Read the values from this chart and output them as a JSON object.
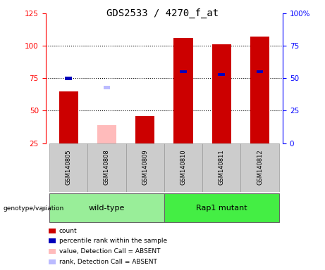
{
  "title": "GDS2533 / 4270_f_at",
  "samples": [
    "GSM140805",
    "GSM140808",
    "GSM140809",
    "GSM140810",
    "GSM140811",
    "GSM140812"
  ],
  "group_wt": {
    "name": "wild-type",
    "indices": [
      0,
      1,
      2
    ],
    "color": "#99ee99"
  },
  "group_rap": {
    "name": "Rap1 mutant",
    "indices": [
      3,
      4,
      5
    ],
    "color": "#44ee44"
  },
  "count_values": [
    65,
    null,
    46,
    106,
    101,
    107
  ],
  "percentile_values": [
    50,
    null,
    null,
    55,
    53,
    55
  ],
  "absent_value_values": [
    null,
    39,
    null,
    null,
    null,
    null
  ],
  "absent_rank_values": [
    null,
    43,
    null,
    null,
    null,
    null
  ],
  "left_ylim": [
    25,
    125
  ],
  "left_yticks": [
    25,
    50,
    75,
    100,
    125
  ],
  "right_ylim": [
    0,
    100
  ],
  "right_yticks": [
    0,
    25,
    50,
    75,
    100
  ],
  "right_yticklabels": [
    "0",
    "25",
    "50",
    "75",
    "100%"
  ],
  "bar_width": 0.5,
  "count_color": "#cc0000",
  "percentile_color": "#0000bb",
  "absent_value_color": "#ffbbbb",
  "absent_rank_color": "#bbbbff",
  "legend_items": [
    {
      "color": "#cc0000",
      "label": "count"
    },
    {
      "color": "#0000bb",
      "label": "percentile rank within the sample"
    },
    {
      "color": "#ffbbbb",
      "label": "value, Detection Call = ABSENT"
    },
    {
      "color": "#bbbbff",
      "label": "rank, Detection Call = ABSENT"
    }
  ]
}
